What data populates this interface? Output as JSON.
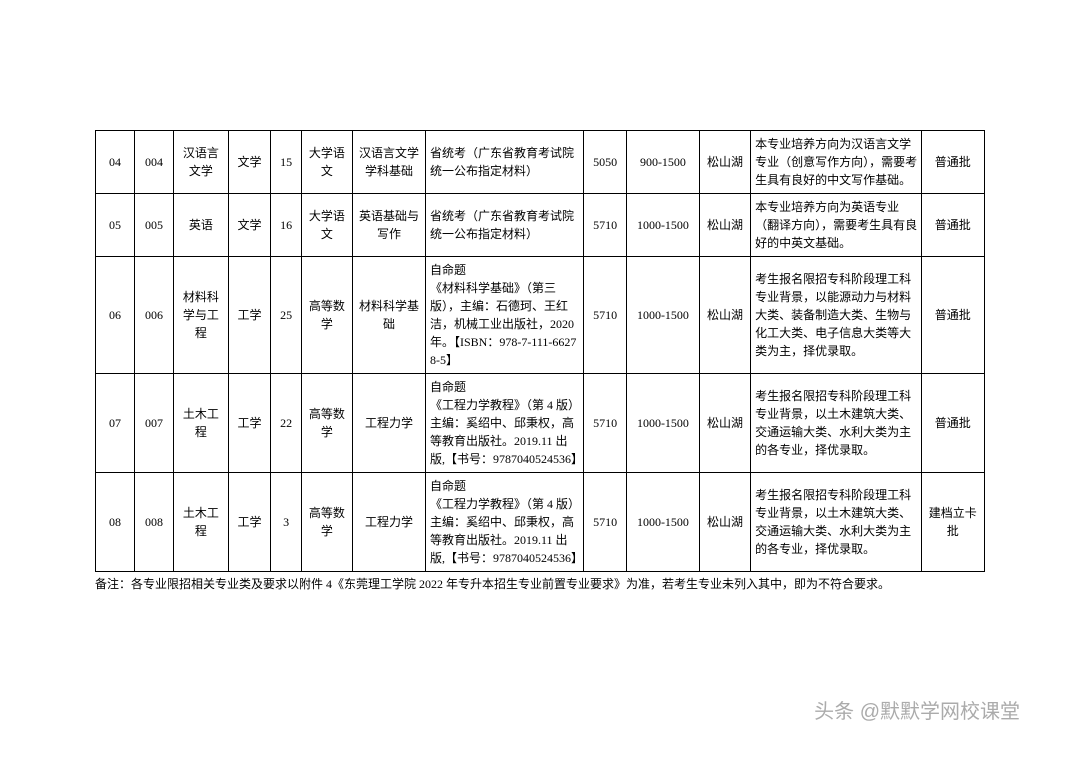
{
  "table": {
    "rows": [
      {
        "c0": "04",
        "c1": "004",
        "c2": "汉语言文学",
        "c3": "文学",
        "c4": "15",
        "c5": "大学语文",
        "c6": "汉语言文学学科基础",
        "c7": "省统考（广东省教育考试院统一公布指定材料）",
        "c8": "5050",
        "c9": "900-1500",
        "c10": "松山湖",
        "c11": "本专业培养方向为汉语言文学专业（创意写作方向），需要考生具有良好的中文写作基础。",
        "c12": "普通批"
      },
      {
        "c0": "05",
        "c1": "005",
        "c2": "英语",
        "c3": "文学",
        "c4": "16",
        "c5": "大学语文",
        "c6": "英语基础与写作",
        "c7": "省统考（广东省教育考试院统一公布指定材料）",
        "c8": "5710",
        "c9": "1000-1500",
        "c10": "松山湖",
        "c11": "本专业培养方向为英语专业（翻译方向），需要考生具有良好的中英文基础。",
        "c12": "普通批"
      },
      {
        "c0": "06",
        "c1": "006",
        "c2": "材料科学与工程",
        "c3": "工学",
        "c4": "25",
        "c5": "高等数学",
        "c6": "材料科学基础",
        "c7": "自命题\n《材料科学基础》（第三版），主编：石德珂、王红洁，机械工业出版社，2020 年。【ISBN：978-7-111-66278-5】",
        "c8": "5710",
        "c9": "1000-1500",
        "c10": "松山湖",
        "c11": "考生报名限招专科阶段理工科专业背景，以能源动力与材料大类、装备制造大类、生物与化工大类、电子信息大类等大类为主，择优录取。",
        "c12": "普通批"
      },
      {
        "c0": "07",
        "c1": "007",
        "c2": "土木工程",
        "c3": "工学",
        "c4": "22",
        "c5": "高等数学",
        "c6": "工程力学",
        "c7": "自命题\n《工程力学教程》（第 4 版） 主编：奚绍中、邱秉权，高等教育出版社。2019.11 出版,【书号：9787040524536】",
        "c8": "5710",
        "c9": "1000-1500",
        "c10": "松山湖",
        "c11": "考生报名限招专科阶段理工科专业背景，以土木建筑大类、交通运输大类、水利大类为主的各专业，择优录取。",
        "c12": "普通批"
      },
      {
        "c0": "08",
        "c1": "008",
        "c2": "土木工程",
        "c3": "工学",
        "c4": "3",
        "c5": "高等数学",
        "c6": "工程力学",
        "c7": "自命题\n《工程力学教程》（第 4 版） 主编：奚绍中、邱秉权，高等教育出版社。2019.11 出版,【书号：9787040524536】",
        "c8": "5710",
        "c9": "1000-1500",
        "c10": "松山湖",
        "c11": "考生报名限招专科阶段理工科专业背景，以土木建筑大类、交通运输大类、水利大类为主的各专业，择优录取。",
        "c12": "建档立卡批"
      }
    ]
  },
  "footnote": "备注：各专业限招相关专业类及要求以附件 4《东莞理工学院 2022 年专升本招生专业前置专业要求》为准，若考生专业未列入其中，即为不符合要求。",
  "watermark": "头条 @默默学网校课堂"
}
